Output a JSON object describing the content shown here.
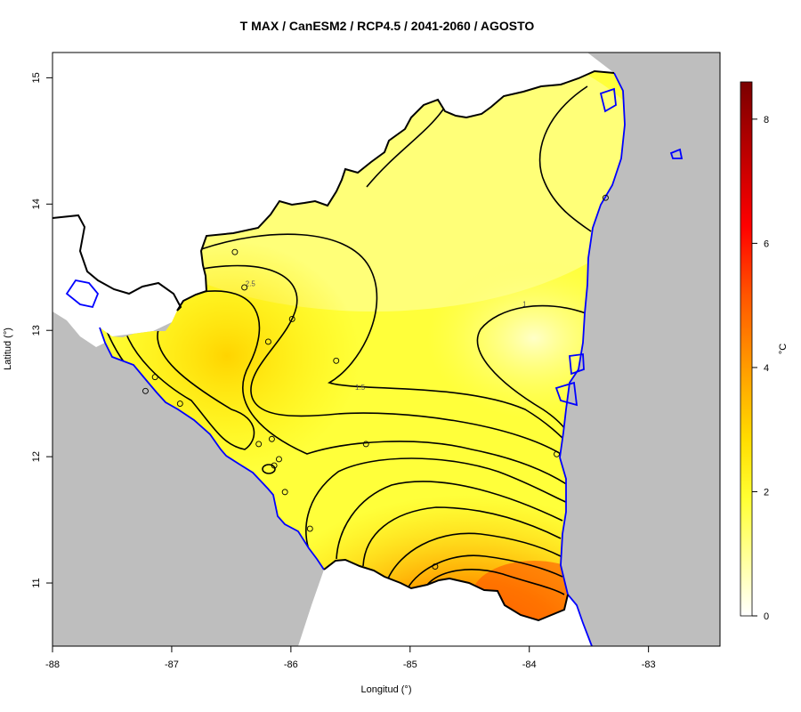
{
  "title": "T MAX / CanESM2 / RCP4.5 / 2041-2060 / AGOSTO",
  "x_axis": {
    "label": "Longitud (°)",
    "ticks": [
      {
        "value": -88,
        "label": "-88"
      },
      {
        "value": -87,
        "label": "-87"
      },
      {
        "value": -86,
        "label": "-86"
      },
      {
        "value": -85,
        "label": "-85"
      },
      {
        "value": -84,
        "label": "-84"
      },
      {
        "value": -83,
        "label": "-83"
      }
    ],
    "range": [
      -88,
      -82.4
    ]
  },
  "y_axis": {
    "label": "Latitud (°)",
    "ticks": [
      {
        "value": 11,
        "label": "11"
      },
      {
        "value": 12,
        "label": "12"
      },
      {
        "value": 13,
        "label": "13"
      },
      {
        "value": 14,
        "label": "14"
      },
      {
        "value": 15,
        "label": "15"
      }
    ],
    "range": [
      10.5,
      15.2
    ]
  },
  "colorbar": {
    "unit": "°C",
    "ticks": [
      {
        "value": 0,
        "label": "0"
      },
      {
        "value": 2,
        "label": "2"
      },
      {
        "value": 4,
        "label": "4"
      },
      {
        "value": 6,
        "label": "6"
      },
      {
        "value": 8,
        "label": "8"
      }
    ],
    "range": [
      0,
      8.6
    ],
    "colors": [
      "#ffffff",
      "#ffff33",
      "#ffdd00",
      "#ff9900",
      "#ff5500",
      "#ff0000",
      "#7a0000"
    ]
  },
  "contour_labels": [
    {
      "text": "2.5",
      "lon": -86.34,
      "lat": 13.37
    },
    {
      "text": "1",
      "lon": -84.04,
      "lat": 13.21
    },
    {
      "text": "1.5",
      "lon": -85.42,
      "lat": 12.55
    }
  ],
  "stations": [
    {
      "lon": -86.47,
      "lat": 13.62
    },
    {
      "lon": -86.39,
      "lat": 13.34
    },
    {
      "lon": -85.99,
      "lat": 13.09
    },
    {
      "lon": -86.19,
      "lat": 12.91
    },
    {
      "lon": -85.62,
      "lat": 12.76
    },
    {
      "lon": -87.14,
      "lat": 12.63
    },
    {
      "lon": -87.22,
      "lat": 12.52
    },
    {
      "lon": -86.93,
      "lat": 12.42
    },
    {
      "lon": -86.27,
      "lat": 12.1
    },
    {
      "lon": -86.16,
      "lat": 12.14
    },
    {
      "lon": -85.37,
      "lat": 12.1
    },
    {
      "lon": -86.1,
      "lat": 11.98
    },
    {
      "lon": -86.14,
      "lat": 11.93
    },
    {
      "lon": -86.05,
      "lat": 11.72
    },
    {
      "lon": -85.84,
      "lat": 11.43
    },
    {
      "lon": -84.79,
      "lat": 11.13
    },
    {
      "lon": -83.77,
      "lat": 12.02
    },
    {
      "lon": -83.36,
      "lat": 14.05
    }
  ],
  "colors": {
    "ocean": "#bebebe",
    "coastline": "#0000ff",
    "border": "#000000"
  }
}
